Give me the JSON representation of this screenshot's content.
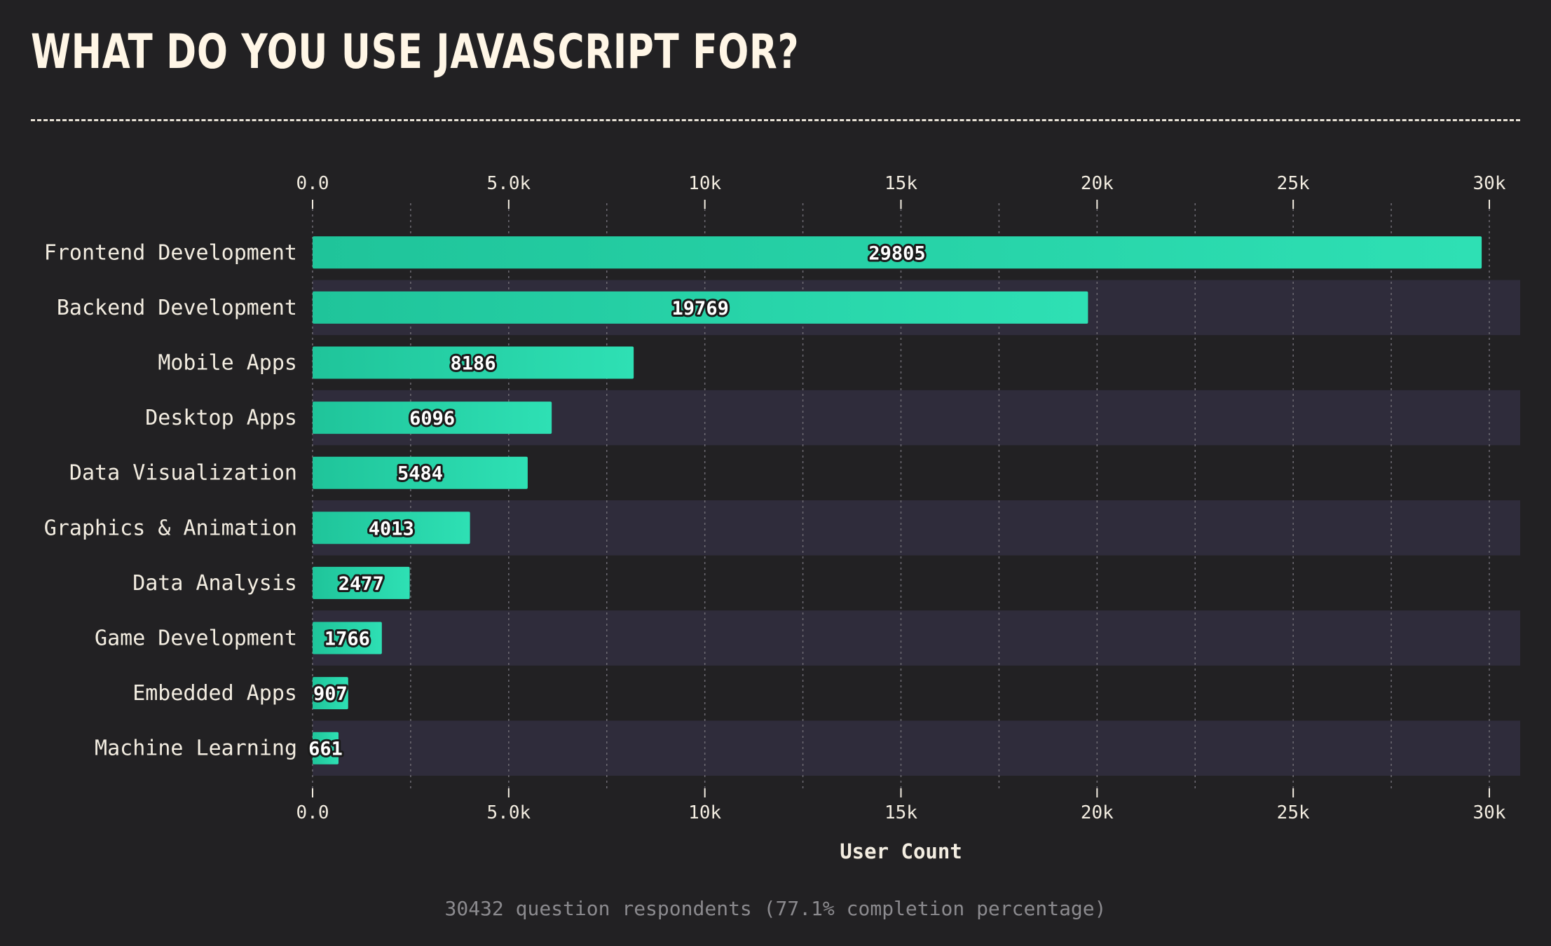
{
  "title": "WHAT DO YOU USE JAVASCRIPT FOR?",
  "footer": "30432 question respondents (77.1% completion percentage)",
  "colors": {
    "background": "#222123",
    "band": "#2f2c3b",
    "bar_start": "#1fc49a",
    "bar_end": "#2ee0b4",
    "text": "#f3ede1",
    "muted": "#8b8a8e"
  },
  "chart_data": {
    "type": "bar",
    "orientation": "horizontal",
    "categories": [
      "Frontend Development",
      "Backend Development",
      "Mobile Apps",
      "Desktop Apps",
      "Data Visualization",
      "Graphics & Animation",
      "Data Analysis",
      "Game Development",
      "Embedded Apps",
      "Machine Learning"
    ],
    "values": [
      29805,
      19769,
      8186,
      6096,
      5484,
      4013,
      2477,
      1766,
      907,
      661
    ],
    "xlabel": "User Count",
    "xlim": [
      0,
      30000
    ],
    "ticks": [
      0,
      5000,
      10000,
      15000,
      20000,
      25000,
      30000
    ],
    "tick_labels": [
      "0.0",
      "5.0k",
      "10k",
      "15k",
      "20k",
      "25k",
      "30k"
    ],
    "grid": true,
    "data_labels": true
  }
}
